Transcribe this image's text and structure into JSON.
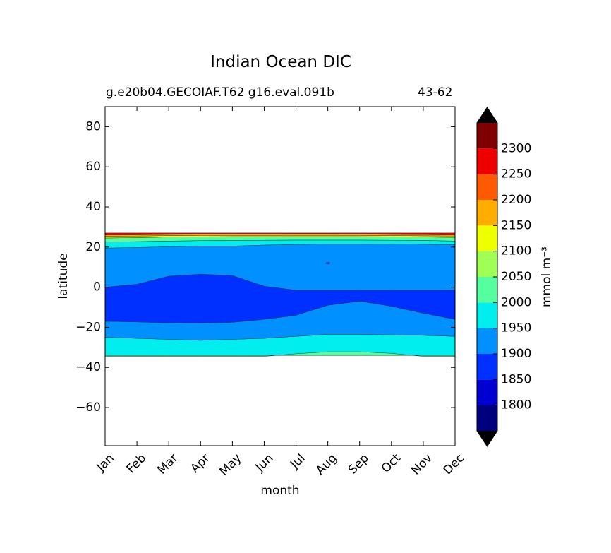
{
  "chart_data": {
    "type": "heatmap",
    "title": "Indian Ocean DIC",
    "subtitle_left": "g.e20b04.GECOIAF.T62 g16.eval.091b",
    "subtitle_right": "43-62",
    "xlabel": "month",
    "ylabel": "latitude",
    "x_categories": [
      "Jan",
      "Feb",
      "Mar",
      "Apr",
      "May",
      "Jun",
      "Jul",
      "Aug",
      "Sep",
      "Oct",
      "Nov",
      "Dec"
    ],
    "yticks": [
      80,
      60,
      40,
      20,
      0,
      -20,
      -40,
      -60
    ],
    "ytick_labels": [
      "80",
      "60",
      "40",
      "20",
      "0",
      "−20",
      "−40",
      "−60"
    ],
    "ylim": [
      -79,
      90
    ],
    "colorbar": {
      "label": "mmol m⁻³",
      "levels": [
        1750,
        1800,
        1850,
        1900,
        1950,
        2000,
        2050,
        2100,
        2150,
        2200,
        2250,
        2300,
        2350
      ],
      "tick_values": [
        1800,
        1850,
        1900,
        1950,
        2000,
        2050,
        2100,
        2150,
        2200,
        2250,
        2300
      ],
      "tick_labels": [
        "1800",
        "1850",
        "1900",
        "1950",
        "2000",
        "2050",
        "2100",
        "2150",
        "2200",
        "2250",
        "2300"
      ],
      "colors": [
        "#00007f",
        "#0000d0",
        "#0030ff",
        "#0090ff",
        "#00eeee",
        "#55ff9f",
        "#a0ff55",
        "#eeff00",
        "#ffae00",
        "#ff5a00",
        "#ee0000",
        "#7f0000"
      ],
      "extend": "both",
      "extend_color": "#000000"
    },
    "data_extent": {
      "lat_min": -34,
      "lat_max": 27
    },
    "bands": [
      {
        "value_range": [
          1950,
          2000
        ],
        "note": "southern fill band",
        "south": [
          -34,
          -34,
          -34,
          -34,
          -34,
          -34,
          -34,
          -34,
          -34,
          -34,
          -34,
          -34
        ],
        "north": [
          -25,
          -25.5,
          -26,
          -26.5,
          -26,
          -25.5,
          -24.5,
          -23.5,
          -23.5,
          -23.8,
          -24,
          -24.5
        ]
      },
      {
        "value_range": [
          2000,
          2050
        ],
        "south": [
          -34,
          -34,
          -34,
          -34,
          -34,
          -34,
          -34,
          -34,
          -34,
          -34,
          -34,
          -34
        ],
        "north": [
          -34.5,
          -34.5,
          -34.5,
          -34.5,
          -34.5,
          -34.5,
          -33.2,
          -32.2,
          -32.2,
          -33,
          -34.5,
          -34.5
        ]
      },
      {
        "value_range": [
          1900,
          1950
        ],
        "south": [
          -25,
          -25.5,
          -26,
          -26.5,
          -26,
          -25.5,
          -24.5,
          -23.5,
          -23.5,
          -23.8,
          -24,
          -24.5
        ],
        "north": [
          -17,
          -17.3,
          -17.8,
          -18,
          -17.5,
          -16,
          -14,
          -9,
          -7,
          -9.5,
          -13,
          -16
        ]
      },
      {
        "value_range": [
          1850,
          1900
        ],
        "south": [
          -17,
          -17.3,
          -17.8,
          -18,
          -17.5,
          -16,
          -14,
          -9,
          -7,
          -9.5,
          -13,
          -16
        ],
        "north": [
          0,
          1.5,
          5.5,
          6.5,
          5.8,
          0.5,
          -1.5,
          -1.5,
          -1.5,
          -1.5,
          -1.5,
          -1.5
        ]
      },
      {
        "value_range": [
          1900,
          1950
        ],
        "note": "northern cyan band",
        "south": [
          0,
          1.5,
          5.5,
          6.5,
          5.8,
          0.5,
          -1.5,
          -1.5,
          -1.5,
          -1.5,
          -1.5,
          -1.5
        ],
        "north": [
          19.5,
          19.8,
          20.2,
          20.5,
          20.5,
          21,
          21.3,
          21.5,
          21.5,
          21.5,
          21.4,
          21.2
        ]
      },
      {
        "value_range": [
          1950,
          2000
        ],
        "south": [
          19.5,
          19.8,
          20.2,
          20.5,
          20.5,
          21,
          21.3,
          21.5,
          21.5,
          21.5,
          21.4,
          21.2
        ],
        "north": [
          22.5,
          22.7,
          23,
          23.2,
          23.3,
          23.4,
          23.5,
          23.5,
          23.5,
          23.4,
          23.3,
          23
        ]
      },
      {
        "value_range": [
          2000,
          2050
        ],
        "south": [
          22.5,
          22.7,
          23,
          23.2,
          23.3,
          23.4,
          23.5,
          23.5,
          23.5,
          23.4,
          23.3,
          23
        ],
        "north": [
          24.5,
          24.7,
          25,
          25.1,
          25.2,
          25.2,
          25.2,
          25.2,
          25.2,
          25.1,
          25,
          24.8
        ]
      },
      {
        "value_range": [
          2100,
          2150
        ],
        "south": [
          24.5,
          24.7,
          25,
          25.1,
          25.2,
          25.2,
          25.2,
          25.2,
          25.2,
          25.1,
          25,
          24.8
        ],
        "north": [
          25.4,
          25.5,
          25.7,
          25.8,
          25.8,
          25.8,
          25.8,
          25.8,
          25.8,
          25.7,
          25.6,
          25.5
        ]
      },
      {
        "value_range": [
          2150,
          2200
        ],
        "south": [
          25.4,
          25.5,
          25.7,
          25.8,
          25.8,
          25.8,
          25.8,
          25.8,
          25.8,
          25.7,
          25.6,
          25.5
        ],
        "north": [
          26,
          26.1,
          26.3,
          26.4,
          26.4,
          26.4,
          26.5,
          26.5,
          26.4,
          26.3,
          26.2,
          26
        ]
      },
      {
        "value_range": [
          2250,
          2300
        ],
        "south": [
          26,
          26.1,
          26.3,
          26.4,
          26.4,
          26.4,
          26.5,
          26.5,
          26.4,
          26.3,
          26.2,
          26
        ],
        "north": [
          27,
          27,
          27,
          27,
          27,
          27,
          27,
          27,
          27,
          27,
          27,
          27
        ]
      }
    ],
    "patches": [
      {
        "value_range": [
          1850,
          1900
        ],
        "month": "Aug",
        "lat": 12
      }
    ]
  }
}
